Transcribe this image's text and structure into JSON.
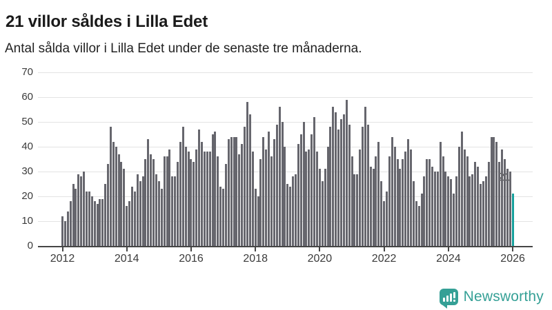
{
  "title": "21 villor såldes i Lilla Edet",
  "subtitle": "Antal sålda villor i Lilla Edet under de senaste tre månaderna.",
  "branding": {
    "logo_text": "Newsworthy",
    "logo_color": "#35a096",
    "logo_icon": "speech-bubble-chart-icon"
  },
  "chart_data": {
    "type": "bar",
    "title": "21 villor såldes i Lilla Edet",
    "subtitle": "Antal sålda villor i Lilla Edet under de senaste tre månaderna.",
    "ylabel": "",
    "xlabel": "",
    "ylim": [
      0,
      70
    ],
    "y_ticks": [
      0,
      10,
      20,
      30,
      40,
      50,
      60,
      70
    ],
    "x_tick_labels": [
      "2012",
      "2014",
      "2016",
      "2018",
      "2020",
      "2022",
      "2024",
      "2026"
    ],
    "grid": "horizontal",
    "frequency": "monthly-rolling-3-month-sum",
    "start_year": 2012,
    "bar_color": "#66666d",
    "highlight_color": "#16a09c",
    "annotation_label": "21",
    "highlight_index": 168,
    "values": [
      12,
      10,
      14,
      18,
      25,
      23,
      29,
      28,
      30,
      22,
      22,
      20,
      18,
      17,
      19,
      19,
      25,
      33,
      48,
      42,
      40,
      37,
      34,
      31,
      16,
      18,
      24,
      22,
      29,
      26,
      28,
      35,
      43,
      37,
      35,
      29,
      26,
      23,
      36,
      36,
      39,
      28,
      28,
      34,
      42,
      48,
      40,
      38,
      35,
      34,
      39,
      47,
      42,
      38,
      38,
      38,
      45,
      46,
      36,
      24,
      23,
      33,
      43,
      44,
      44,
      44,
      37,
      41,
      48,
      58,
      53,
      38,
      23,
      20,
      35,
      44,
      39,
      46,
      36,
      43,
      49,
      56,
      50,
      40,
      25,
      24,
      28,
      29,
      41,
      45,
      50,
      38,
      39,
      45,
      52,
      38,
      31,
      26,
      31,
      40,
      48,
      56,
      54,
      47,
      51,
      53,
      59,
      49,
      36,
      29,
      29,
      39,
      48,
      56,
      49,
      32,
      31,
      36,
      42,
      26,
      18,
      22,
      36,
      44,
      40,
      35,
      31,
      35,
      38,
      43,
      39,
      26,
      18,
      16,
      21,
      28,
      35,
      35,
      32,
      30,
      30,
      42,
      36,
      30,
      28,
      27,
      21,
      28,
      40,
      46,
      39,
      36,
      28,
      29,
      34,
      32,
      25,
      26,
      28,
      34,
      44,
      44,
      42,
      34,
      39,
      35,
      31,
      30,
      21
    ]
  }
}
